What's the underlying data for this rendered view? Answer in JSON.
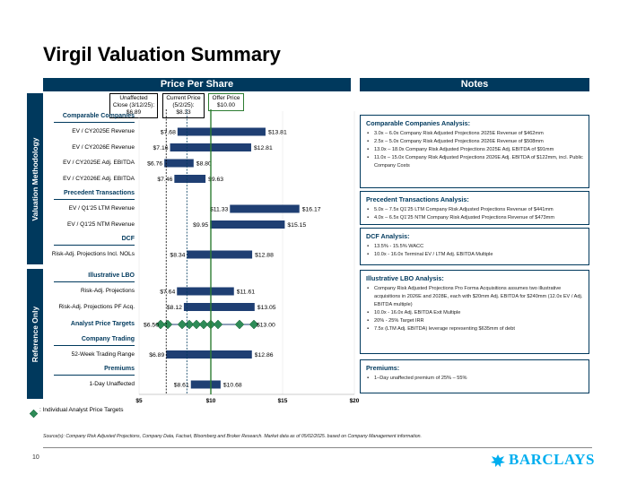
{
  "page": {
    "title": "Virgil Valuation Summary",
    "page_number": "10",
    "source": "Source(s): Company Risk Adjusted Projections, Company Data, Factset, Bloomberg and Broker Research. Market data as of 05/02/2025. based on Company Management information.",
    "brand": "BARCLAYS",
    "legend_text": ": Individual Analyst Price Targets"
  },
  "headers": {
    "price_per_share": "Price Per Share",
    "notes": "Notes",
    "valuation_methodology": "Valuation Methodology",
    "reference_only": "Reference Only"
  },
  "reference_lines": [
    {
      "label": "Unaffected Close (3/12/25): $6.89",
      "value": 6.89,
      "color": "#000000"
    },
    {
      "label": "Current Price (5/2/25): $8.33",
      "value": 8.33,
      "color": "#00395D"
    },
    {
      "label": "Offer Price $10.00",
      "value": 10.0,
      "color": "#2E7D32"
    }
  ],
  "chart_data": {
    "type": "floating-bar",
    "xlim": [
      5,
      20
    ],
    "ticks": [
      "$5",
      "$10",
      "$15",
      "$20"
    ],
    "tick_values": [
      5,
      10,
      15,
      20
    ],
    "sections": [
      {
        "name": "Comparable Companies",
        "group": "valuation",
        "rows": [
          {
            "label": "EV / CY2025E Revenue",
            "low": 7.68,
            "high": 13.81,
            "low_label": "$7.68",
            "high_label": "$13.81"
          },
          {
            "label": "EV / CY2026E Revenue",
            "low": 7.16,
            "high": 12.81,
            "low_label": "$7.16",
            "high_label": "$12.81"
          },
          {
            "label": "EV / CY2025E Adj. EBITDA",
            "low": 6.76,
            "high": 8.8,
            "low_label": "$6.76",
            "high_label": "$8.80"
          },
          {
            "label": "EV / CY2026E Adj. EBITDA",
            "low": 7.46,
            "high": 9.63,
            "low_label": "$7.46",
            "high_label": "$9.63"
          }
        ]
      },
      {
        "name": "Precedent Transactions",
        "group": "valuation",
        "rows": [
          {
            "label": "EV / Q1'25 LTM Revenue",
            "low": 11.33,
            "high": 16.17,
            "low_label": "$11.33",
            "high_label": "$16.17"
          },
          {
            "label": "EV / Q1'25 NTM Revenue",
            "low": 9.95,
            "high": 15.15,
            "low_label": "$9.95",
            "high_label": "$15.15"
          }
        ]
      },
      {
        "name": "DCF",
        "group": "valuation",
        "rows": [
          {
            "label": "Risk-Adj. Projections Incl. NOLs",
            "low": 8.34,
            "high": 12.88,
            "low_label": "$8.34",
            "high_label": "$12.88"
          }
        ]
      },
      {
        "name": "Illustrative LBO",
        "group": "reference",
        "rows": [
          {
            "label": "Risk-Adj. Projections",
            "low": 7.64,
            "high": 11.61,
            "low_label": "$7.64",
            "high_label": "$11.61"
          },
          {
            "label": "Risk-Adj. Projections PF Acq.",
            "low": 8.12,
            "high": 13.05,
            "low_label": "$8.12",
            "high_label": "$13.05"
          }
        ]
      },
      {
        "name": "Analyst Price Targets",
        "group": "reference",
        "inline": true,
        "rows": [
          {
            "label": "",
            "low": 6.5,
            "high": 13.0,
            "low_label": "$6.50",
            "high_label": "$13.00",
            "analyst_targets": [
              6.5,
              7.0,
              8.0,
              8.5,
              9.0,
              9.5,
              10.0,
              10.5,
              12.0,
              13.0
            ]
          }
        ]
      },
      {
        "name": "Company Trading",
        "group": "reference",
        "rows": [
          {
            "label": "52-Week Trading Range",
            "low": 6.89,
            "high": 12.86,
            "low_label": "$6.89",
            "high_label": "$12.86"
          }
        ]
      },
      {
        "name": "Premiums",
        "group": "reference",
        "rows": [
          {
            "label": "1-Day Unaffected",
            "low": 8.61,
            "high": 10.68,
            "low_label": "$8.61",
            "high_label": "$10.68"
          }
        ]
      }
    ]
  },
  "notes": [
    {
      "title": "Comparable Companies Analysis:",
      "items": [
        "3.0x – 6.0x Company Risk Adjusted Projections 2025E Revenue of $462mm",
        "2.5x – 5.0x Company Risk Adjusted Projections 2026E Revenue of $508mm",
        "13.0x – 18.0x Company Risk Adjusted Projections 2025E Adj. EBITDA of $91mm",
        "11.0x – 15.0x Company Risk Adjusted Projections 2026E Adj. EBITDA of $122mm, incl. Public Company Costs"
      ]
    },
    {
      "title": "Precedent Transactions Analysis:",
      "items": [
        "5.0x – 7.5x Q1'25 LTM Company Risk Adjusted Projections Revenue of $441mm",
        "4.0x – 6.5x Q1'25 NTM Company Risk Adjusted Projections Revenue of $473mm"
      ]
    },
    {
      "title": "DCF Analysis:",
      "items": [
        "13.5% - 15.5% WACC",
        "10.0x - 16.0x Terminal EV / LTM Adj. EBITDA Multiple"
      ]
    },
    {
      "title": "Illustrative LBO Analysis:",
      "items": [
        "Company Risk Adjusted Projections Pro Forma Acquisitions assumes two illustrative acquisitions in 2026E and 2028E, each with $20mm Adj. EBITDA for $240mm (12.0x EV / Adj. EBITDA multiple)",
        "10.0x - 16.0x Adj. EBITDA Exit Multiple",
        "20% - 25% Target IRR",
        "7.5x (LTM Adj. EBITDA) leverage representing $635mm of debt"
      ]
    },
    {
      "title": "Premiums:",
      "items": [
        "1–Day unaffected premium of 25% – 55%"
      ]
    }
  ],
  "colors": {
    "navy": "#00395D",
    "bar": "#1F3F73",
    "green": "#2E7D32",
    "diamond": "#2E8B57",
    "brand": "#00AEEF"
  }
}
